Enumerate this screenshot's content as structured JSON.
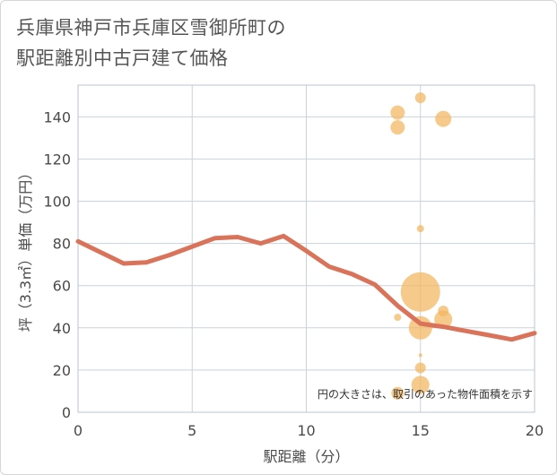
{
  "title_lines": [
    "兵庫県神戸市兵庫区雪御所町の",
    "駅距離別中古戸建て価格"
  ],
  "chart_data": {
    "type": "scatter",
    "title": "兵庫県神戸市兵庫区雪御所町の駅距離別中古戸建て価格",
    "xlabel": "駅距離（分）",
    "ylabel": "坪（3.3㎡）単価（万円）",
    "xlim": [
      0,
      20
    ],
    "ylim": [
      0,
      155
    ],
    "xticks": [
      0,
      5,
      10,
      15,
      20
    ],
    "yticks": [
      0,
      20,
      40,
      60,
      80,
      100,
      120,
      140
    ],
    "grid": true,
    "annotation": "円の大きさは、取引のあった物件面積を示す",
    "points": [
      {
        "x": 14,
        "y": 142,
        "size": 8
      },
      {
        "x": 14,
        "y": 135,
        "size": 8
      },
      {
        "x": 15,
        "y": 149,
        "size": 6
      },
      {
        "x": 16,
        "y": 139,
        "size": 9
      },
      {
        "x": 15,
        "y": 87,
        "size": 4
      },
      {
        "x": 15,
        "y": 57,
        "size": 22
      },
      {
        "x": 16,
        "y": 48,
        "size": 6
      },
      {
        "x": 16,
        "y": 44,
        "size": 10
      },
      {
        "x": 14,
        "y": 45,
        "size": 4
      },
      {
        "x": 15,
        "y": 40,
        "size": 13
      },
      {
        "x": 15,
        "y": 27,
        "size": 2
      },
      {
        "x": 15,
        "y": 21,
        "size": 6
      },
      {
        "x": 15,
        "y": 13,
        "size": 10
      },
      {
        "x": 14,
        "y": 9,
        "size": 7
      }
    ],
    "trend_line": {
      "x": [
        0,
        2,
        3,
        4,
        5,
        6,
        7,
        8,
        9,
        10,
        11,
        12,
        13,
        14,
        15,
        16,
        17,
        18,
        19,
        20
      ],
      "y": [
        81,
        70.5,
        71,
        74.5,
        78.5,
        82.5,
        83,
        80,
        83.5,
        76.5,
        69,
        65.5,
        60.5,
        50.5,
        42,
        40.5,
        38.5,
        36.5,
        34.5,
        37.5
      ]
    }
  }
}
